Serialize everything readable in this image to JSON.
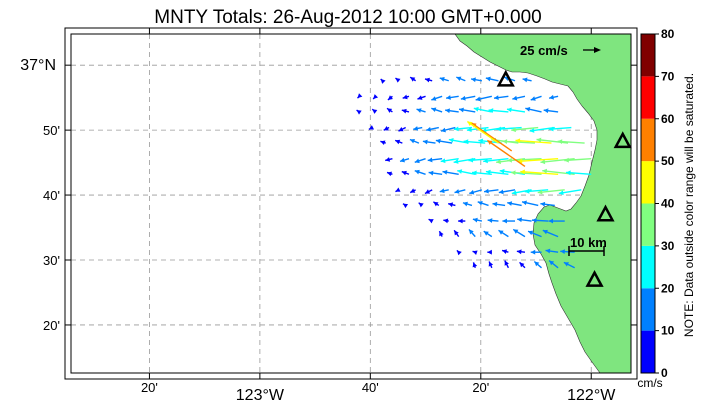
{
  "title": "MNTY Totals: 26-Aug-2012 10:00 GMT+0.000",
  "map": {
    "lat_range": [
      36.21,
      37.08
    ],
    "lon_range": [
      -123.57,
      -121.88
    ],
    "x_ticks": [
      {
        "lon": -123.3333,
        "label": "20'",
        "major": false
      },
      {
        "lon": -123.0,
        "label": "123°W",
        "major": true
      },
      {
        "lon": -122.6667,
        "label": "40'",
        "major": false
      },
      {
        "lon": -122.3333,
        "label": "20'",
        "major": false
      },
      {
        "lon": -122.0,
        "label": "122°W",
        "major": true
      }
    ],
    "y_ticks": [
      {
        "lat": 37.0,
        "label": "37°N",
        "major": true
      },
      {
        "lat": 36.8333,
        "label": "50'",
        "major": false
      },
      {
        "lat": 36.6667,
        "label": "40'",
        "major": false
      },
      {
        "lat": 36.5,
        "label": "30'",
        "major": false
      },
      {
        "lat": 36.3333,
        "label": "20'",
        "major": false
      }
    ],
    "land_color": "#7fe57f",
    "grid": true,
    "scale_vector_label": "25 cm/s",
    "scale_bar_label": "10 km",
    "stations": [
      {
        "lat": 36.961,
        "lon": -122.258
      },
      {
        "lat": 36.803,
        "lon": -121.905
      },
      {
        "lat": 36.615,
        "lon": -121.957
      },
      {
        "lat": 36.447,
        "lon": -121.99
      }
    ]
  },
  "colorbar": {
    "ticks": [
      "80",
      "70",
      "60",
      "50",
      "40",
      "30",
      "20",
      "10",
      "0"
    ],
    "colors": [
      "#0000ff",
      "#0080ff",
      "#00ffff",
      "#80ff80",
      "#ffff00",
      "#ff8000",
      "#ff0000",
      "#800000"
    ],
    "unit": "cm/s",
    "note": "NOTE: Data outside color range will be saturated."
  },
  "chart_data": {
    "type": "vector-field",
    "unit": "cm/s",
    "rows": [
      {
        "lat": 36.96,
        "lon_start": -122.63,
        "lon_step": 0.05,
        "u": [
          -2,
          -4,
          -6,
          -8,
          -10,
          -10,
          -12,
          -14,
          -12,
          -10
        ]
      },
      {
        "lat": 36.92,
        "lon_start": -122.7,
        "lon_step": 0.05,
        "u": [
          -2,
          -3,
          -5,
          -7,
          -9,
          -12,
          -14,
          -16,
          -18,
          -16,
          -14,
          -12,
          -10
        ]
      },
      {
        "lat": 36.88,
        "lon_start": -122.7,
        "lon_step": 0.05,
        "u": [
          -3,
          -4,
          -6,
          -8,
          -10,
          -12,
          -15,
          -18,
          -20,
          -22,
          -20,
          -18,
          -16
        ]
      },
      {
        "lat": 36.84,
        "lon_start": -122.66,
        "lon_step": 0.05,
        "u": [
          -4,
          -6,
          -8,
          -10,
          -14,
          -16,
          -20,
          -24,
          -26,
          -28,
          -30,
          -28,
          -25
        ]
      },
      {
        "lat": 36.8,
        "lon_start": -122.62,
        "lon_step": 0.05,
        "u": [
          -6,
          -8,
          -10,
          -14,
          -18,
          -22,
          -24,
          -26,
          -30,
          -36,
          -40,
          -35,
          -30
        ]
      },
      {
        "lat": 36.76,
        "lon_start": -122.6,
        "lon_step": 0.05,
        "u": [
          -8,
          -10,
          -12,
          -16,
          -20,
          -24,
          -26,
          -28,
          -32,
          -38,
          -45,
          -38,
          -30
        ]
      },
      {
        "lat": 36.72,
        "lon_start": -122.6,
        "lon_step": 0.05,
        "u": [
          -6,
          -8,
          -12,
          -15,
          -18,
          -20,
          -22,
          -25,
          -28,
          -34,
          -42,
          -36,
          -28
        ]
      },
      {
        "lat": 36.68,
        "lon_start": -122.58,
        "lon_step": 0.05,
        "u": [
          -4,
          -6,
          -8,
          -10,
          -12,
          -14,
          -16,
          -18,
          -22,
          -26,
          -30,
          -25
        ]
      },
      {
        "lat": 36.64,
        "lon_start": -122.56,
        "lon_step": 0.05,
        "u": [
          -3,
          -4,
          -6,
          -8,
          -10,
          -12,
          -14,
          -16,
          -18,
          -16
        ]
      },
      {
        "lat": 36.6,
        "lon_start": -122.48,
        "lon_step": 0.05,
        "u": [
          -4,
          -6,
          -8,
          -10,
          -12,
          -14,
          -16,
          -18,
          -18
        ]
      },
      {
        "lat": 36.56,
        "lon_start": -122.45,
        "lon_step": 0.05,
        "u": [
          -3,
          -5,
          -7,
          -9,
          -11,
          -13,
          -15,
          -17
        ]
      },
      {
        "lat": 36.52,
        "lon_start": -122.4,
        "lon_step": 0.05,
        "u": [
          -2,
          -3,
          -5,
          -7,
          -9,
          -12,
          -14,
          -16
        ]
      },
      {
        "lat": 36.48,
        "lon_start": -122.35,
        "lon_step": 0.05,
        "u": [
          -2,
          -3,
          -4,
          -6,
          -8,
          -10,
          -12
        ]
      }
    ],
    "highlight": [
      {
        "lat": 36.78,
        "lon": -122.24,
        "speed": 62
      },
      {
        "lat": 36.74,
        "lon": -122.2,
        "speed": 58
      },
      {
        "lat": 36.8,
        "lon": -122.28,
        "speed": 48
      }
    ]
  }
}
